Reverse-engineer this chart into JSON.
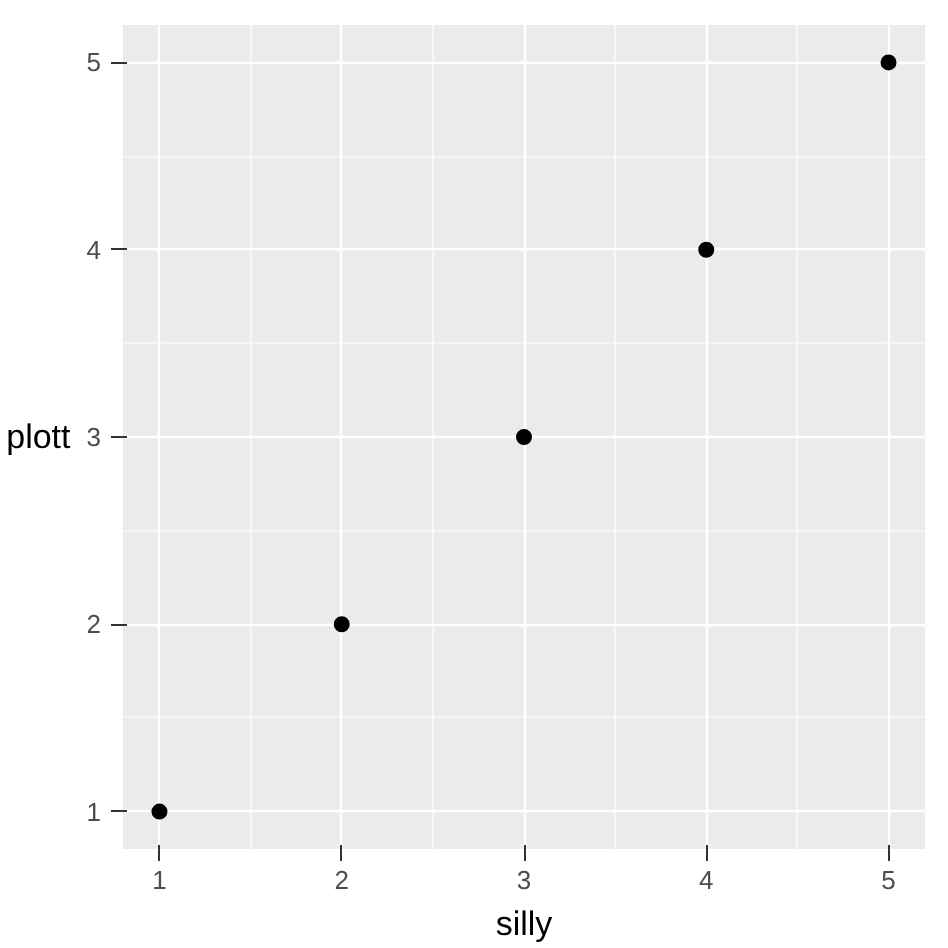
{
  "chart_data": {
    "type": "scatter",
    "xlabel": "silly",
    "ylabel": "plott",
    "x": [
      1,
      2,
      3,
      4,
      5
    ],
    "values": [
      1,
      2,
      3,
      4,
      5
    ],
    "color": "#000000",
    "xlim": [
      0.8,
      5.2
    ],
    "ylim": [
      0.8,
      5.2
    ],
    "xticks": [
      1,
      2,
      3,
      4,
      5
    ],
    "yticks": [
      1,
      2,
      3,
      4,
      5
    ],
    "grid": true,
    "marker": "circle"
  }
}
